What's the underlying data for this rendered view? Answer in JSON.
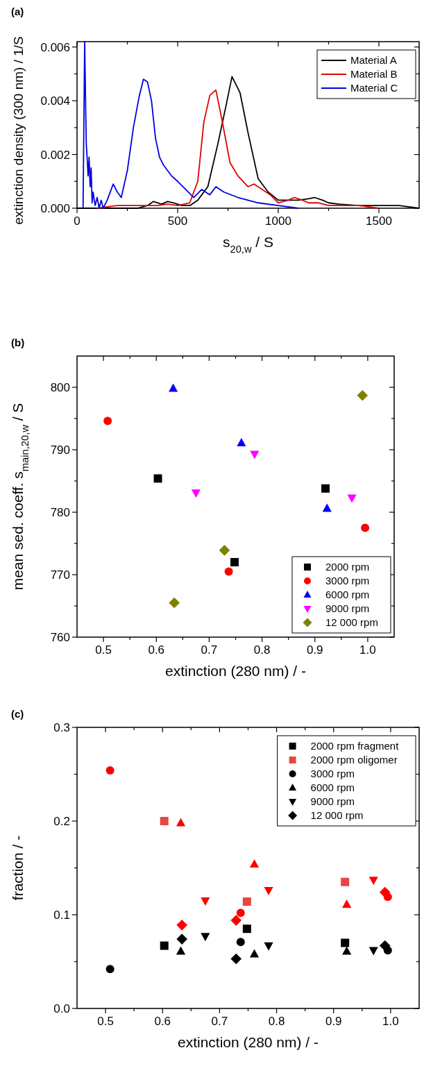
{
  "chart_data": [
    {
      "type": "line",
      "title": "(a)",
      "xlabel": "s$_{20,w}$ / S",
      "ylabel": "extinction density (300 nm) / 1/S",
      "xlim": [
        0,
        1700
      ],
      "xticks": [
        0,
        {
          "value": 250,
          "label": null
        },
        500,
        {
          "value": 750,
          "label": null
        },
        1000,
        {
          "value": 1250,
          "label": null
        },
        1500
      ],
      "ylim": [
        0,
        0.0062
      ],
      "yticks": [
        {
          "value": 0,
          "label": "0.000"
        },
        {
          "value": 0.001,
          "label": null
        },
        0.002,
        {
          "value": 0.003,
          "label": null
        },
        0.004,
        {
          "value": 0.005,
          "label": null
        },
        0.006
      ],
      "legend": "top right",
      "line_style": "solid",
      "series": [
        {
          "name": "Material A",
          "color": "#000000",
          "x": [
            0,
            100,
            200,
            300,
            350,
            380,
            420,
            450,
            480,
            520,
            560,
            600,
            650,
            700,
            740,
            770,
            810,
            850,
            900,
            950,
            1000,
            1050,
            1100,
            1150,
            1180,
            1220,
            1250,
            1300,
            1400,
            1500,
            1600,
            1700
          ],
          "values": [
            0,
            0,
            0,
            0,
            0.0001,
            0.00025,
            0.00015,
            0.00025,
            0.0002,
            0.0001,
            0.0001,
            0.0003,
            0.0008,
            0.0024,
            0.0038,
            0.0049,
            0.0043,
            0.0028,
            0.0011,
            0.0006,
            0.0003,
            0.0003,
            0.0003,
            0.00035,
            0.0004,
            0.0003,
            0.0002,
            0.00015,
            0.0001,
            0.0001,
            0.0001,
            0
          ]
        },
        {
          "name": "Material B",
          "color": "#e00000",
          "x": [
            100,
            200,
            250,
            300,
            350,
            400,
            450,
            500,
            560,
            600,
            630,
            660,
            690,
            720,
            760,
            800,
            850,
            880,
            920,
            960,
            1000,
            1050,
            1080,
            1120,
            1150,
            1200,
            1250,
            1300,
            1400,
            1500
          ],
          "values": [
            0,
            0.0001,
            0.0001,
            0.0001,
            0.0001,
            0.0001,
            0.00015,
            0.0001,
            0.0002,
            0.001,
            0.0032,
            0.0042,
            0.0044,
            0.0033,
            0.0017,
            0.0012,
            0.0008,
            0.0009,
            0.0007,
            0.0005,
            0.0002,
            0.0003,
            0.0004,
            0.0003,
            0.0002,
            0.0002,
            0.0001,
            0.0001,
            0.0001,
            0
          ]
        },
        {
          "name": "Material C",
          "color": "#0000e0",
          "x": [
            30,
            38,
            42,
            46,
            50,
            55,
            60,
            65,
            70,
            75,
            80,
            90,
            100,
            110,
            120,
            130,
            150,
            170,
            180,
            200,
            220,
            250,
            280,
            310,
            330,
            350,
            370,
            390,
            410,
            430,
            470,
            500,
            540,
            580,
            620,
            660,
            690,
            730,
            800,
            900,
            1000,
            1100
          ],
          "values": [
            0,
            0.0062,
            0.0042,
            0.0024,
            0.0019,
            0.0012,
            0.0019,
            0.0008,
            0.0015,
            0.0002,
            0.0006,
            0.0001,
            0.0004,
            0.0,
            0.0003,
            0.0,
            0.0003,
            0.0007,
            0.0009,
            0.0006,
            0.0004,
            0.0014,
            0.003,
            0.0042,
            0.0048,
            0.0047,
            0.004,
            0.0026,
            0.0019,
            0.0016,
            0.0012,
            0.001,
            0.0007,
            0.0004,
            0.0007,
            0.0005,
            0.0008,
            0.0006,
            0.0004,
            0.0002,
            0.0001,
            0
          ]
        }
      ]
    },
    {
      "type": "scatter",
      "title": "(b)",
      "xlabel": "extinction (280 nm) / -",
      "ylabel": "mean sed. coeff. s$_{main,20,w}$ / S",
      "xlim": [
        0.45,
        1.05
      ],
      "xticks": [
        0.5,
        {
          "value": 0.55,
          "label": null
        },
        0.6,
        {
          "value": 0.65,
          "label": null
        },
        0.7,
        {
          "value": 0.75,
          "label": null
        },
        0.8,
        {
          "value": 0.85,
          "label": null
        },
        0.9,
        {
          "value": 0.95,
          "label": null
        },
        {
          "value": 1.0,
          "label": "1.0"
        }
      ],
      "ylim": [
        760,
        805
      ],
      "yticks": [
        760,
        {
          "value": 765,
          "label": null
        },
        770,
        {
          "value": 775,
          "label": null
        },
        780,
        {
          "value": 785,
          "label": null
        },
        790,
        {
          "value": 795,
          "label": null
        },
        800
      ],
      "legend": "bottom right",
      "series": [
        {
          "name": "2000 rpm",
          "color": "#000000",
          "marker": "square",
          "x": [
            0.603,
            0.748,
            0.92
          ],
          "values": [
            785.4,
            772.0,
            783.8
          ]
        },
        {
          "name": "3000 rpm",
          "color": "#ff0000",
          "marker": "circle",
          "x": [
            0.508,
            0.737,
            0.995
          ],
          "values": [
            794.6,
            770.5,
            777.5
          ]
        },
        {
          "name": "6000 rpm",
          "color": "#0000ff",
          "marker": "triangle",
          "x": [
            0.632,
            0.761,
            0.923
          ],
          "values": [
            799.8,
            791.1,
            780.6
          ]
        },
        {
          "name": "9000 rpm",
          "color": "#ff00ff",
          "marker": "triangle-down",
          "x": [
            0.675,
            0.786,
            0.97
          ],
          "values": [
            783.1,
            789.3,
            782.3
          ]
        },
        {
          "name": "12 000 rpm",
          "color": "#808000",
          "marker": "diamond",
          "x": [
            0.634,
            0.729,
            0.99
          ],
          "values": [
            765.5,
            773.9,
            798.7
          ]
        }
      ]
    },
    {
      "type": "scatter",
      "title": "(c)",
      "xlabel": "extinction (280 nm) / -",
      "ylabel": "fraction / -",
      "xlim": [
        0.45,
        1.05
      ],
      "xticks": [
        0.5,
        {
          "value": 0.55,
          "label": null
        },
        0.6,
        {
          "value": 0.65,
          "label": null
        },
        0.7,
        {
          "value": 0.75,
          "label": null
        },
        0.8,
        {
          "value": 0.85,
          "label": null
        },
        0.9,
        {
          "value": 0.95,
          "label": null
        },
        {
          "value": 1.0,
          "label": "1.0"
        }
      ],
      "ylim": [
        0,
        0.3
      ],
      "yticks": [
        {
          "value": 0,
          "label": "0.0"
        },
        {
          "value": 0.05,
          "label": null
        },
        0.1,
        {
          "value": 0.15,
          "label": null
        },
        0.2,
        {
          "value": 0.25,
          "label": null
        },
        0.3
      ],
      "legend": "top right",
      "series": [
        {
          "name": "2000 rpm fragment",
          "color": "#000000",
          "marker": "square",
          "x": [
            0.603,
            0.748,
            0.92
          ],
          "values": [
            0.067,
            0.085,
            0.07
          ]
        },
        {
          "name": "2000 rpm oligomer",
          "color": "#e84545",
          "marker": "square",
          "x": [
            0.603,
            0.748,
            0.92
          ],
          "values": [
            0.2,
            0.114,
            0.135
          ]
        },
        {
          "name": "3000 rpm",
          "color": "#000000",
          "marker": "circle",
          "x": [
            0.508,
            0.737,
            0.995
          ],
          "values": [
            0.042,
            0.071,
            0.062
          ]
        },
        {
          "name": "6000 rpm",
          "color": "#000000",
          "marker": "triangle",
          "x": [
            0.632,
            0.761,
            0.923
          ],
          "values": [
            0.061,
            0.058,
            0.061
          ]
        },
        {
          "name": "9000 rpm",
          "color": "#000000",
          "marker": "triangle-down",
          "x": [
            0.675,
            0.786,
            0.97
          ],
          "values": [
            0.077,
            0.067,
            0.062
          ]
        },
        {
          "name": "12 000 rpm",
          "color": "#000000",
          "marker": "diamond",
          "x": [
            0.634,
            0.729,
            0.99
          ],
          "values": [
            0.074,
            0.053,
            0.067
          ]
        },
        {
          "color": "#ff0000",
          "marker": "circle",
          "x": [
            0.508,
            0.737,
            0.995
          ],
          "values": [
            0.254,
            0.102,
            0.119
          ]
        },
        {
          "color": "#ff0000",
          "marker": "triangle",
          "x": [
            0.632,
            0.761,
            0.923
          ],
          "values": [
            0.198,
            0.154,
            0.111
          ]
        },
        {
          "color": "#ff0000",
          "marker": "triangle-down",
          "x": [
            0.675,
            0.786,
            0.97
          ],
          "values": [
            0.115,
            0.126,
            0.137
          ]
        },
        {
          "color": "#ff0000",
          "marker": "diamond",
          "x": [
            0.634,
            0.729,
            0.99
          ],
          "values": [
            0.089,
            0.094,
            0.124
          ]
        }
      ]
    }
  ]
}
